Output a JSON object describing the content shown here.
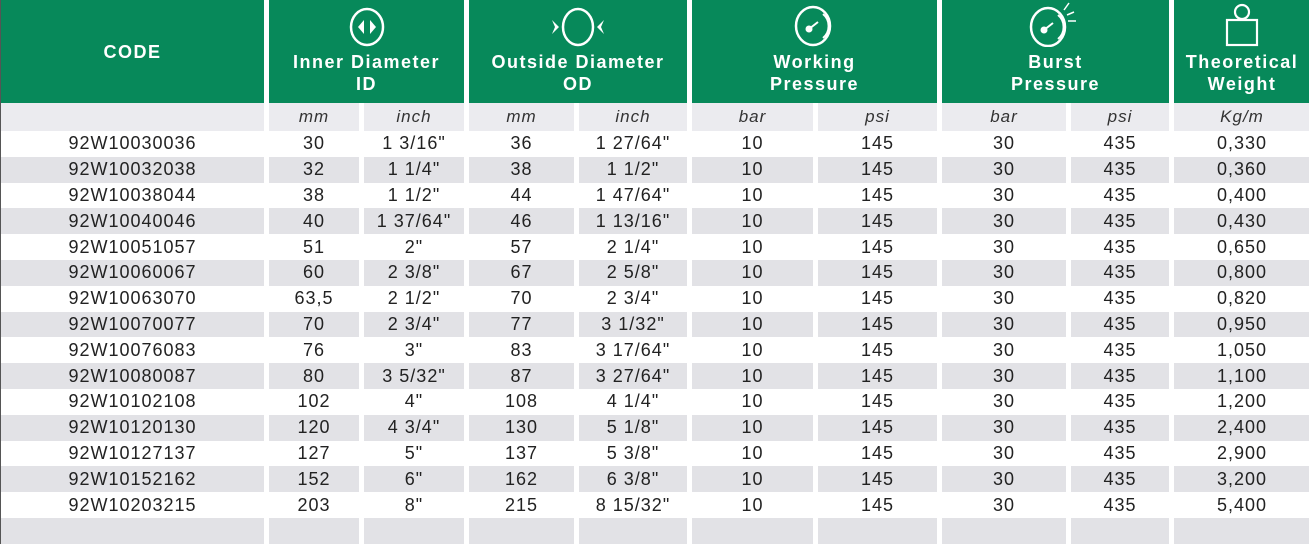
{
  "header": {
    "code": "CODE",
    "inner_diameter": [
      "Inner Diameter",
      "ID"
    ],
    "outside_diameter": [
      "Outside Diameter",
      "OD"
    ],
    "working_pressure": [
      "Working",
      "Pressure"
    ],
    "burst_pressure": [
      "Burst",
      "Pressure"
    ],
    "theoretical_weight": [
      "Theoretical",
      "Weight"
    ]
  },
  "units": [
    "",
    "mm",
    "inch",
    "mm",
    "inch",
    "bar",
    "psi",
    "bar",
    "psi",
    "Kg/m"
  ],
  "colors": {
    "header": "#07895a",
    "alt_row": "#e2e2e6"
  },
  "rows": [
    [
      "92W10030036",
      "30",
      "1 3/16\"",
      "36",
      "1 27/64\"",
      "10",
      "145",
      "30",
      "435",
      "0,330"
    ],
    [
      "92W10032038",
      "32",
      "1 1/4\"",
      "38",
      "1 1/2\"",
      "10",
      "145",
      "30",
      "435",
      "0,360"
    ],
    [
      "92W10038044",
      "38",
      "1 1/2\"",
      "44",
      "1 47/64\"",
      "10",
      "145",
      "30",
      "435",
      "0,400"
    ],
    [
      "92W10040046",
      "40",
      "1 37/64\"",
      "46",
      "1 13/16\"",
      "10",
      "145",
      "30",
      "435",
      "0,430"
    ],
    [
      "92W10051057",
      "51",
      "2\"",
      "57",
      "2 1/4\"",
      "10",
      "145",
      "30",
      "435",
      "0,650"
    ],
    [
      "92W10060067",
      "60",
      "2 3/8\"",
      "67",
      "2 5/8\"",
      "10",
      "145",
      "30",
      "435",
      "0,800"
    ],
    [
      "92W10063070",
      "63,5",
      "2 1/2\"",
      "70",
      "2 3/4\"",
      "10",
      "145",
      "30",
      "435",
      "0,820"
    ],
    [
      "92W10070077",
      "70",
      "2 3/4\"",
      "77",
      "3 1/32\"",
      "10",
      "145",
      "30",
      "435",
      "0,950"
    ],
    [
      "92W10076083",
      "76",
      "3\"",
      "83",
      "3 17/64\"",
      "10",
      "145",
      "30",
      "435",
      "1,050"
    ],
    [
      "92W10080087",
      "80",
      "3 5/32\"",
      "87",
      "3 27/64\"",
      "10",
      "145",
      "30",
      "435",
      "1,100"
    ],
    [
      "92W10102108",
      "102",
      "4\"",
      "108",
      "4 1/4\"",
      "10",
      "145",
      "30",
      "435",
      "1,200"
    ],
    [
      "92W10120130",
      "120",
      "4 3/4\"",
      "130",
      "5 1/8\"",
      "10",
      "145",
      "30",
      "435",
      "2,400"
    ],
    [
      "92W10127137",
      "127",
      "5\"",
      "137",
      "5 3/8\"",
      "10",
      "145",
      "30",
      "435",
      "2,900"
    ],
    [
      "92W10152162",
      "152",
      "6\"",
      "162",
      "6 3/8\"",
      "10",
      "145",
      "30",
      "435",
      "3,200"
    ],
    [
      "92W10203215",
      "203",
      "8\"",
      "215",
      "8 15/32\"",
      "10",
      "145",
      "30",
      "435",
      "5,400"
    ]
  ]
}
